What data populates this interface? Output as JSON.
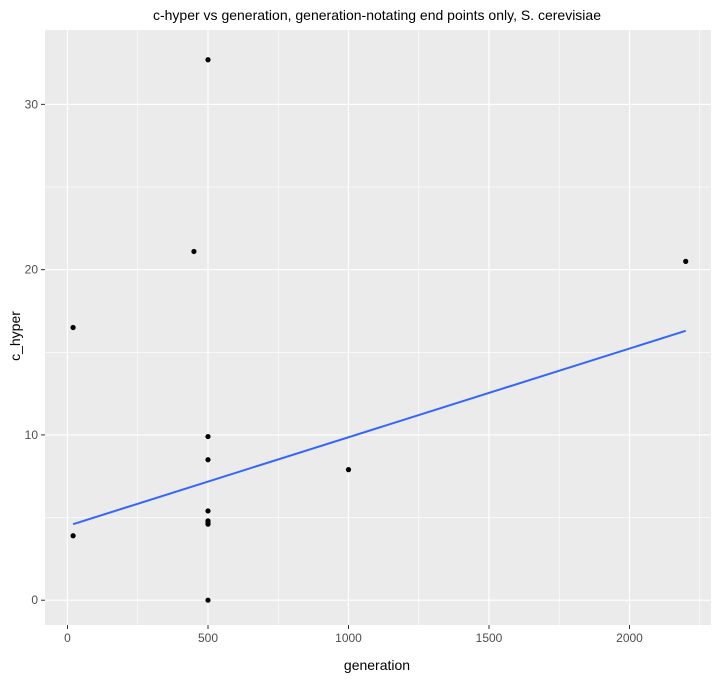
{
  "chart_data": {
    "type": "scatter",
    "title": "c-hyper vs generation, generation-notating end points only, S. cerevisiae",
    "xlabel": "generation",
    "ylabel": "c_hyper",
    "xlim": [
      -80,
      2290
    ],
    "ylim": [
      -1.5,
      34.5
    ],
    "x_ticks": [
      0,
      500,
      1000,
      1500,
      2000
    ],
    "y_ticks": [
      0,
      10,
      20,
      30
    ],
    "grid": true,
    "panel_background": "#ebebeb",
    "grid_color": "#ffffff",
    "point_color": "#000000",
    "points": [
      {
        "x": 500,
        "y": 32.7
      },
      {
        "x": 450,
        "y": 21.1
      },
      {
        "x": 2200,
        "y": 20.5
      },
      {
        "x": 20,
        "y": 16.5
      },
      {
        "x": 500,
        "y": 9.9
      },
      {
        "x": 500,
        "y": 8.5
      },
      {
        "x": 1000,
        "y": 7.9
      },
      {
        "x": 500,
        "y": 5.4
      },
      {
        "x": 500,
        "y": 4.8
      },
      {
        "x": 500,
        "y": 4.7
      },
      {
        "x": 500,
        "y": 4.6
      },
      {
        "x": 20,
        "y": 3.9
      },
      {
        "x": 500,
        "y": 0.0
      }
    ],
    "trend_line": {
      "method": "lm",
      "color": "#3366ff",
      "x": [
        20,
        2200
      ],
      "y": [
        4.6,
        16.3
      ]
    }
  }
}
